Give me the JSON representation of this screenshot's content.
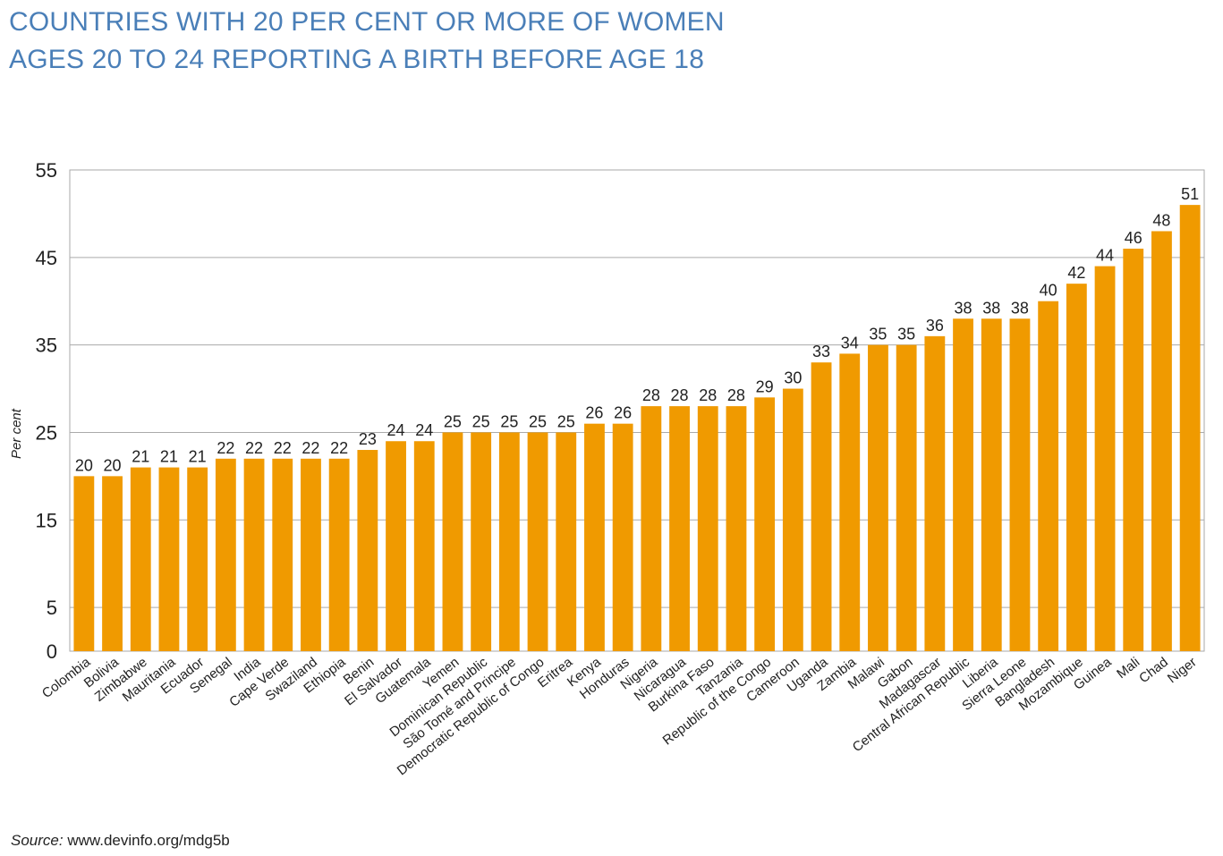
{
  "title_line1": "COUNTRIES WITH 20 PER CENT OR MORE OF WOMEN",
  "title_line2": "AGES 20 TO 24 REPORTING A BIRTH BEFORE AGE 18",
  "source_label": "Source:",
  "source_text": "www.devinfo.org/mdg5b",
  "colors": {
    "bar": "#f09a00",
    "title": "#4a7fb8",
    "grid": "#aaaaaa"
  },
  "chart_data": {
    "type": "bar",
    "ylabel": "Per cent",
    "ylim": [
      0,
      55
    ],
    "yticks": [
      0,
      5,
      15,
      25,
      35,
      45,
      55
    ],
    "grid": true,
    "categories": [
      "Colombia",
      "Bolivia",
      "Zimbabwe",
      "Mauritania",
      "Ecuador",
      "Senegal",
      "India",
      "Cape Verde",
      "Swaziland",
      "Ethiopia",
      "Benin",
      "El Salvador",
      "Guatemala",
      "Yemen",
      "Dominican Republic",
      "São Tomé and Principe",
      "Democratic Republic of Congo",
      "Eritrea",
      "Kenya",
      "Honduras",
      "Nigeria",
      "Nicaragua",
      "Burkina Faso",
      "Tanzania",
      "Republic of the Congo",
      "Cameroon",
      "Uganda",
      "Zambia",
      "Malawi",
      "Gabon",
      "Madagascar",
      "Central African Republic",
      "Liberia",
      "Sierra Leone",
      "Bangladesh",
      "Mozambique",
      "Guinea",
      "Mali",
      "Chad",
      "Niger"
    ],
    "values": [
      20,
      20,
      21,
      21,
      21,
      22,
      22,
      22,
      22,
      22,
      23,
      24,
      24,
      25,
      25,
      25,
      25,
      25,
      26,
      26,
      28,
      28,
      28,
      28,
      29,
      30,
      33,
      34,
      35,
      35,
      36,
      38,
      38,
      38,
      40,
      42,
      44,
      46,
      48,
      51
    ]
  }
}
